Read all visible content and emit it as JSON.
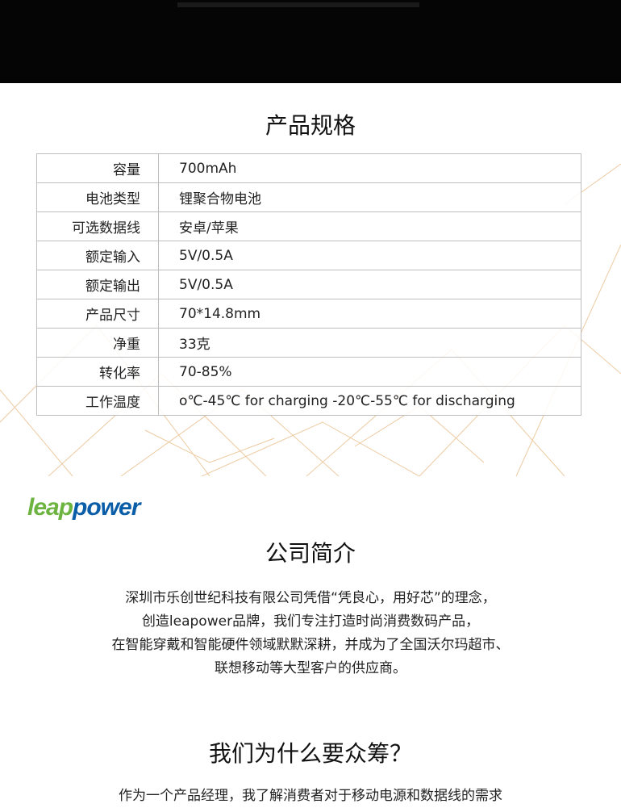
{
  "spec": {
    "title": "产品规格",
    "rows": [
      {
        "k": "容量",
        "v": "700mAh"
      },
      {
        "k": "电池类型",
        "v": "锂聚合物电池"
      },
      {
        "k": "可选数据线",
        "v": "安卓/苹果"
      },
      {
        "k": "额定输入",
        "v": "5V/0.5A"
      },
      {
        "k": "额定输出",
        "v": "5V/0.5A"
      },
      {
        "k": "产品尺寸",
        "v": "70*14.8mm"
      },
      {
        "k": "净重",
        "v": "33克"
      },
      {
        "k": "转化率",
        "v": "70-85%"
      },
      {
        "k": "工作温度",
        "v": "o℃-45℃ for charging   -20℃-55℃ for discharging"
      }
    ]
  },
  "logo": {
    "part1": "leap",
    "part2": "power"
  },
  "company": {
    "title": "公司简介",
    "lines": [
      "深圳市乐创世纪科技有限公司凭借“凭良心，用好芯”的理念，",
      "创造leapower品牌，我们专注打造时尚消费数码产品，",
      "在智能穿戴和智能硬件领域默默深耕，并成为了全国沃尔玛超市、",
      "联想移动等大型客户的供应商。"
    ]
  },
  "why": {
    "title": "我们为什么要众筹？",
    "line": "作为一个产品经理，我了解消费者对于移动电源和数据线的需求"
  },
  "colors": {
    "green": "#6cb33f",
    "blue": "#0a5ea8",
    "lines": "#e0a860"
  }
}
